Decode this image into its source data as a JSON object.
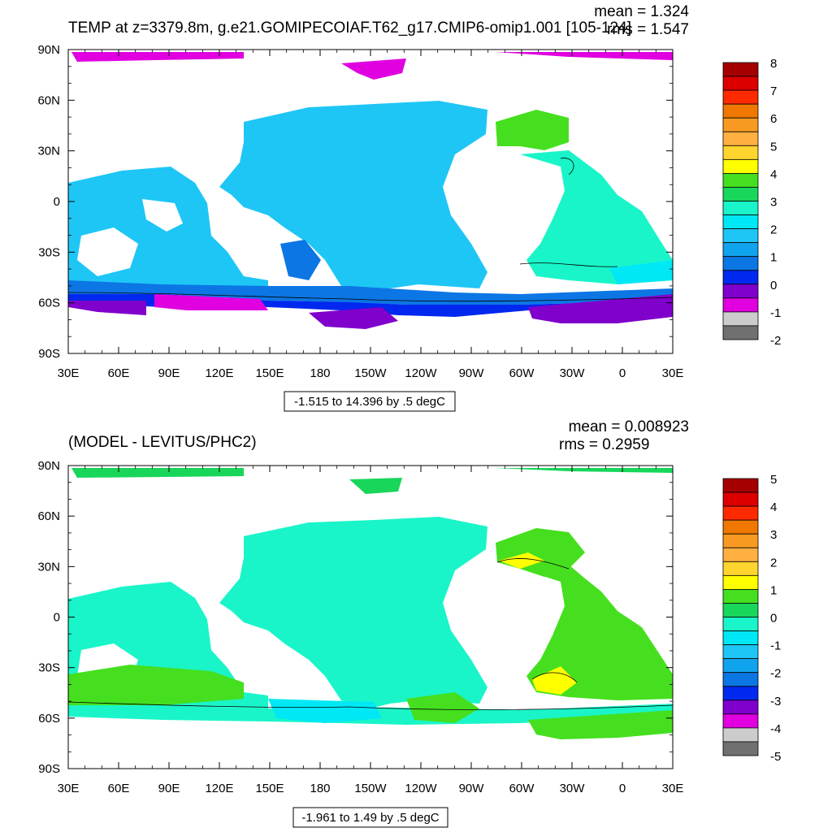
{
  "chart_data": [
    {
      "type": "heatmap",
      "title": "TEMP at z=3379.8m, g.e21.GOMIPECOIAF.T62_g17.CMIP6-omip1.001 [105-124]",
      "stats": {
        "mean": "mean = 1.324",
        "rms": "rms = 1.547"
      },
      "range_label": "-1.515 to 14.396 by .5 degC",
      "x_ticks": [
        "30E",
        "60E",
        "90E",
        "120E",
        "150E",
        "180",
        "150W",
        "120W",
        "90W",
        "60W",
        "30W",
        "0",
        "30E"
      ],
      "y_ticks": [
        "90N",
        "60N",
        "30N",
        "0",
        "30S",
        "60S",
        "90S"
      ],
      "colorbar": {
        "labels": [
          "8",
          "7",
          "6",
          "5",
          "4",
          "3",
          "2",
          "1",
          "0",
          "-1",
          "-2"
        ],
        "colors": [
          "#a50000",
          "#dd0000",
          "#ff2a00",
          "#f07800",
          "#f89a22",
          "#ffb040",
          "#ffd530",
          "#ffff00",
          "#45df1f",
          "#18d65a",
          "#19f5c9",
          "#00e8f5",
          "#1ec6f5",
          "#11a4ee",
          "#0c76e4",
          "#0028ee",
          "#8000cc",
          "#e000e0",
          "#cccccc",
          "#707070"
        ]
      }
    },
    {
      "type": "heatmap",
      "title": "(MODEL - LEVITUS/PHC2)",
      "stats": {
        "mean": "mean = 0.008923",
        "rms": "rms = 0.2959"
      },
      "range_label": "-1.961 to 1.49 by .5 degC",
      "x_ticks": [
        "30E",
        "60E",
        "90E",
        "120E",
        "150E",
        "180",
        "150W",
        "120W",
        "90W",
        "60W",
        "30W",
        "0",
        "30E"
      ],
      "y_ticks": [
        "90N",
        "60N",
        "30N",
        "0",
        "30S",
        "60S",
        "90S"
      ],
      "colorbar": {
        "labels": [
          "5",
          "4",
          "3",
          "2",
          "1",
          "0",
          "-1",
          "-2",
          "-3",
          "-4",
          "-5"
        ],
        "colors": [
          "#a50000",
          "#dd0000",
          "#ff2a00",
          "#f07800",
          "#f89a22",
          "#ffb040",
          "#ffd530",
          "#ffff00",
          "#45df1f",
          "#18d65a",
          "#19f5c9",
          "#00e8f5",
          "#1ec6f5",
          "#11a4ee",
          "#0c76e4",
          "#0028ee",
          "#8000cc",
          "#e000e0",
          "#cccccc",
          "#707070"
        ]
      }
    }
  ]
}
